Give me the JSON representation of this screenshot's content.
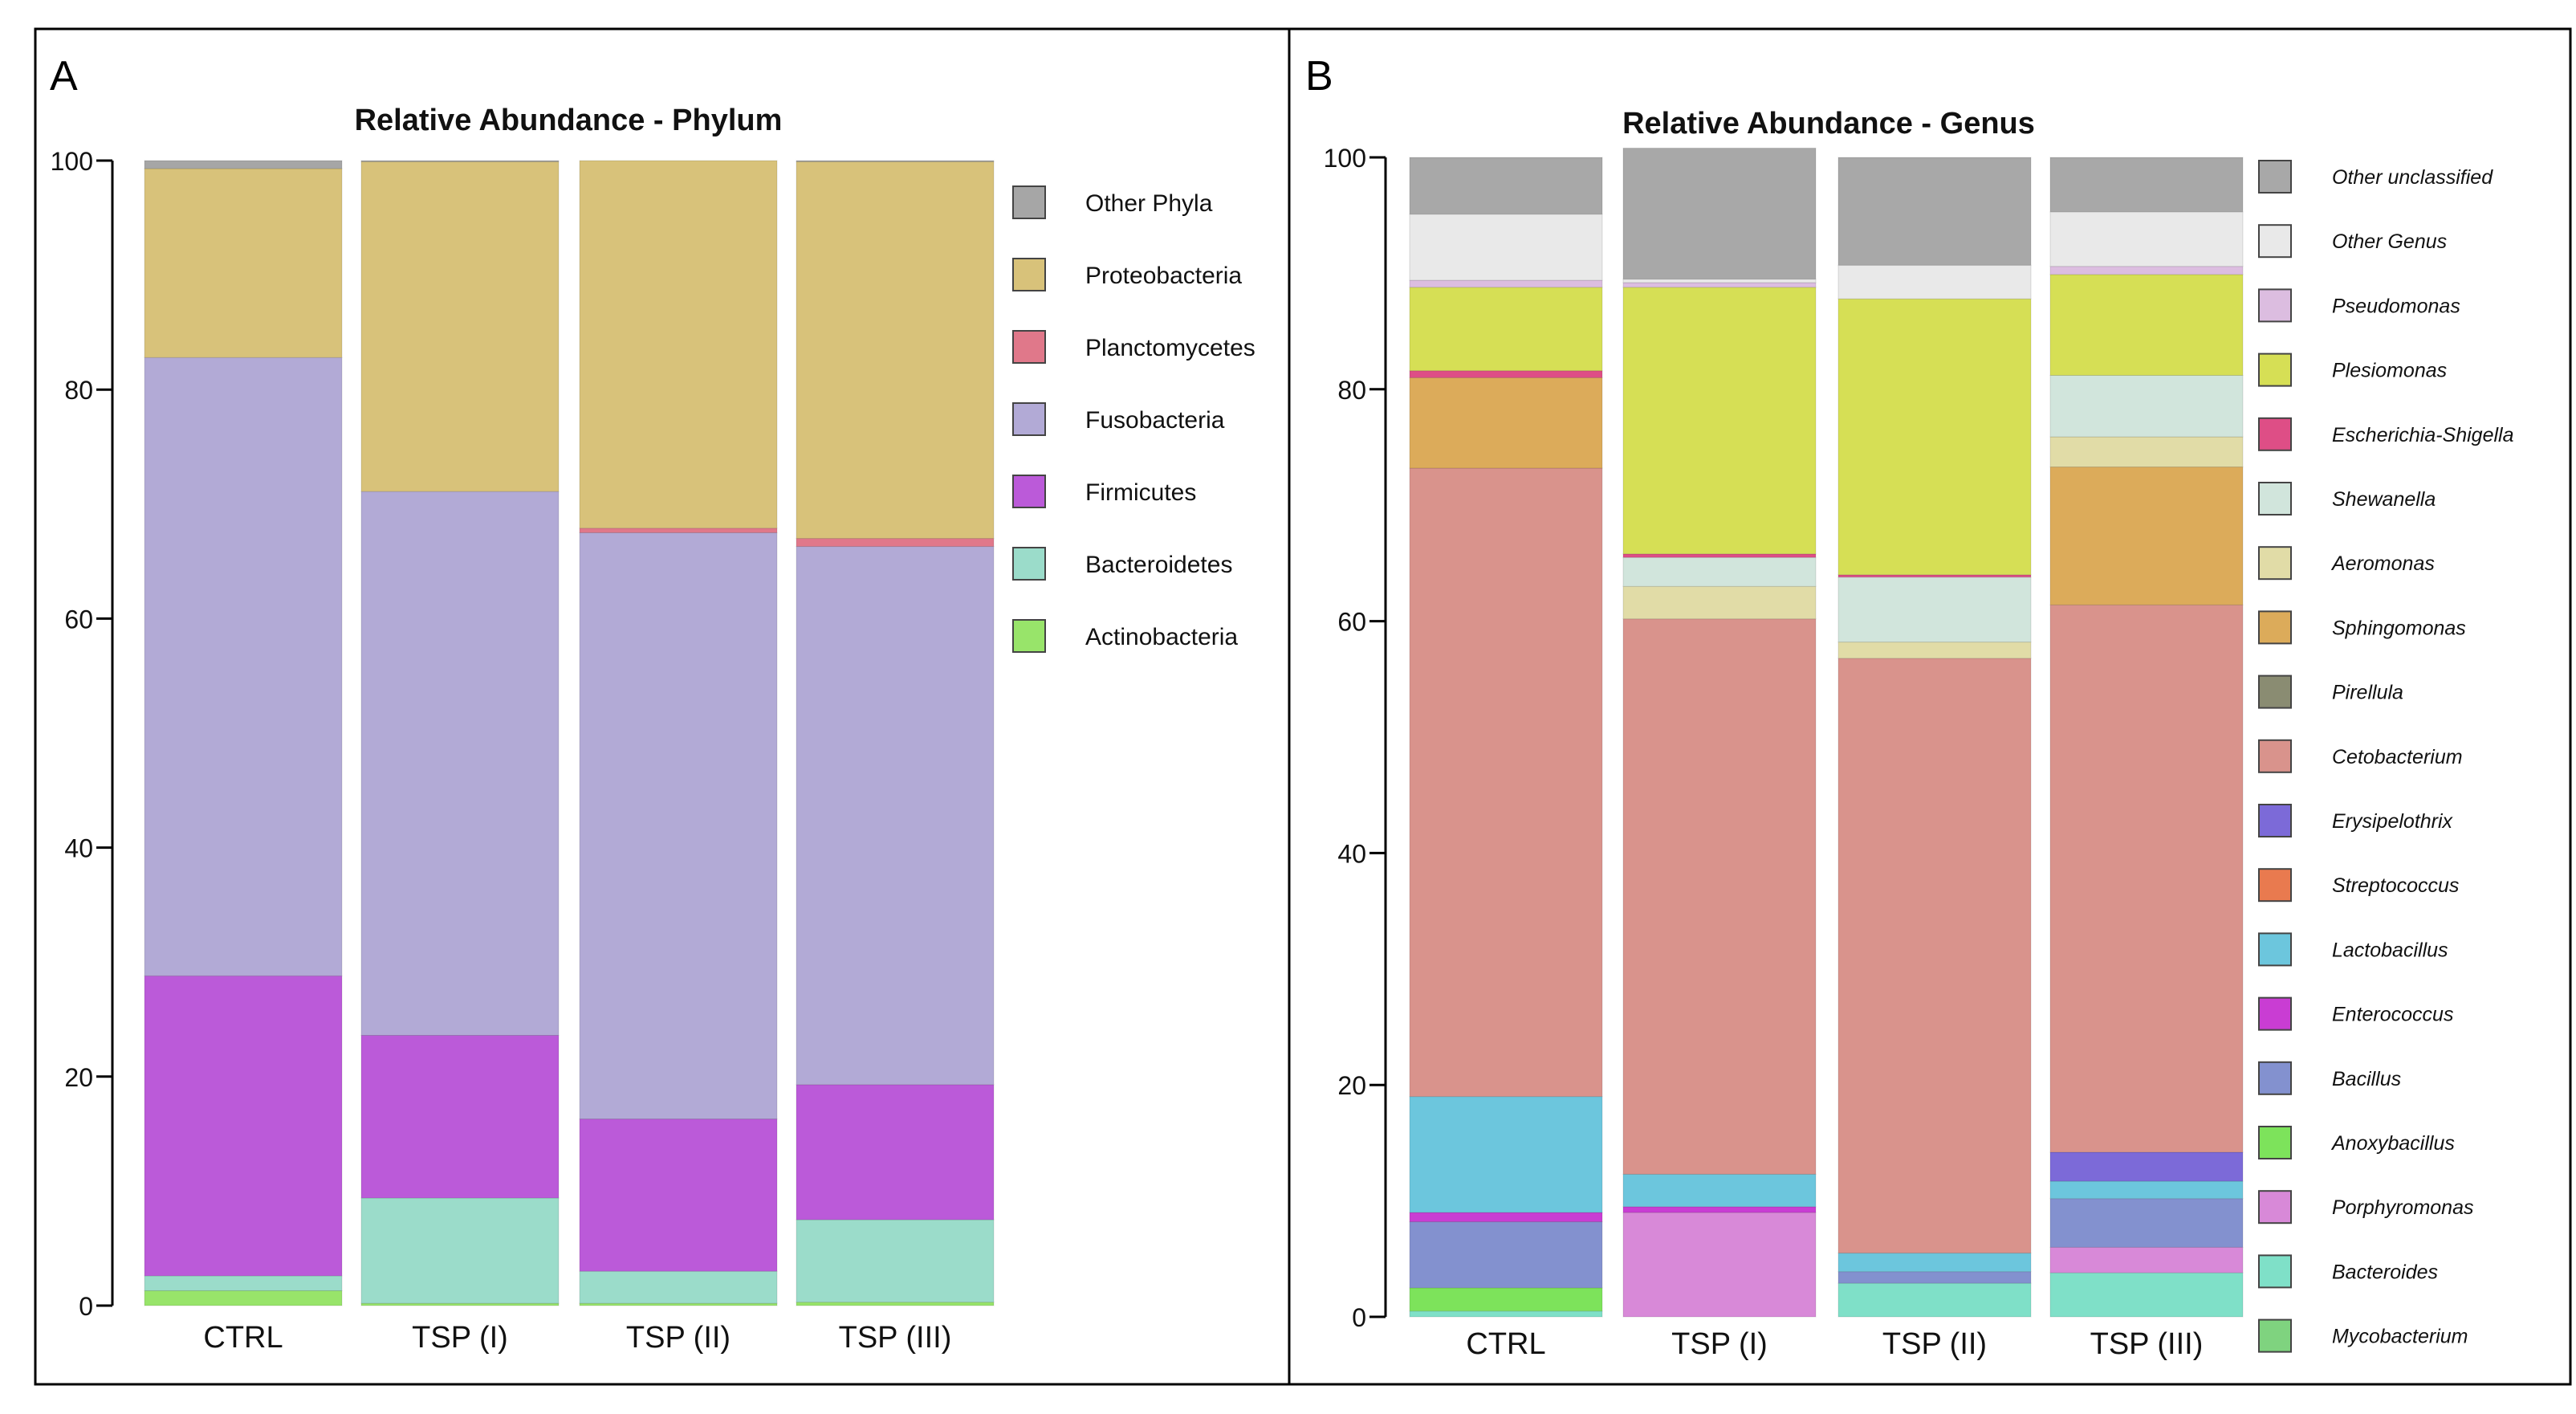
{
  "panels": [
    {
      "label": "A"
    },
    {
      "label": "B"
    }
  ],
  "chart_data": [
    {
      "type": "bar",
      "stacked": true,
      "title": "Relative Abundance - Phylum",
      "categories": [
        "CTRL",
        "TSP (I)",
        "TSP (II)",
        "TSP (III)"
      ],
      "ylim": [
        0,
        100
      ],
      "yticks": [
        0,
        20,
        40,
        60,
        80,
        100
      ],
      "xlabel": "",
      "ylabel": "",
      "legend_position": "right",
      "series": [
        {
          "name": "Actinobacteria",
          "color": "#98e46a",
          "values": [
            1.3,
            0.2,
            0.2,
            0.3
          ]
        },
        {
          "name": "Bacteroidetes",
          "color": "#9bdcca",
          "values": [
            1.3,
            9.2,
            2.8,
            7.2
          ]
        },
        {
          "name": "Firmicutes",
          "color": "#bb5ad9",
          "values": [
            26.2,
            14.2,
            13.3,
            11.8
          ]
        },
        {
          "name": "Fusobacteria",
          "color": "#b2aad6",
          "values": [
            54.0,
            47.5,
            51.2,
            47.0
          ]
        },
        {
          "name": "Planctomycetes",
          "color": "#e0788a",
          "values": [
            0.0,
            0.0,
            0.4,
            0.7
          ]
        },
        {
          "name": "Proteobacteria",
          "color": "#d8c27a",
          "values": [
            16.5,
            28.8,
            32.1,
            32.9
          ]
        },
        {
          "name": "Other Phyla",
          "color": "#a6a6a6",
          "values": [
            0.7,
            0.1,
            0.0,
            0.1
          ]
        }
      ]
    },
    {
      "type": "bar",
      "stacked": true,
      "title": "Relative Abundance - Genus",
      "categories": [
        "CTRL",
        "TSP (I)",
        "TSP (II)",
        "TSP (III)"
      ],
      "ylim": [
        0,
        100
      ],
      "yticks": [
        0,
        20,
        40,
        60,
        80,
        100
      ],
      "xlabel": "",
      "ylabel": "",
      "legend_position": "right",
      "series": [
        {
          "name": "Mycobacterium",
          "color": "#7fd37f",
          "values": [
            0.0,
            0.0,
            0.0,
            0.0
          ]
        },
        {
          "name": "Bacteroides",
          "color": "#7fe0c8",
          "values": [
            0.5,
            0.0,
            2.9,
            3.8
          ]
        },
        {
          "name": "Porphyromonas",
          "color": "#d889d8",
          "values": [
            0.0,
            9.0,
            0.0,
            2.2
          ]
        },
        {
          "name": "Anoxybacillus",
          "color": "#7de35b",
          "values": [
            2.0,
            0.0,
            0.0,
            0.0
          ]
        },
        {
          "name": "Bacillus",
          "color": "#8391cf",
          "values": [
            5.7,
            0.0,
            1.0,
            4.2
          ]
        },
        {
          "name": "Enterococcus",
          "color": "#c93dd3",
          "values": [
            0.8,
            0.5,
            0.0,
            0.0
          ]
        },
        {
          "name": "Lactobacillus",
          "color": "#6cc6dd",
          "values": [
            10.0,
            2.8,
            1.6,
            1.5
          ]
        },
        {
          "name": "Streptococcus",
          "color": "#e97a4f",
          "values": [
            0.0,
            0.0,
            0.0,
            0.0
          ]
        },
        {
          "name": "Erysipelothrix",
          "color": "#7c6ad8",
          "values": [
            0.0,
            0.0,
            0.0,
            2.5
          ]
        },
        {
          "name": "Cetobacterium",
          "color": "#d9938c",
          "values": [
            54.2,
            47.9,
            51.3,
            47.2
          ]
        },
        {
          "name": "Pirellula",
          "color": "#8a8c72",
          "values": [
            0.0,
            0.0,
            0.0,
            0.0
          ]
        },
        {
          "name": "Sphingomonas",
          "color": "#dcab5a",
          "values": [
            7.8,
            0.0,
            0.0,
            11.9
          ]
        },
        {
          "name": "Aeromonas",
          "color": "#e1dca7",
          "values": [
            0.0,
            2.8,
            1.4,
            2.6
          ]
        },
        {
          "name": "Shewanella",
          "color": "#d1e5dc",
          "values": [
            0.0,
            2.5,
            5.6,
            5.3
          ]
        },
        {
          "name": "Escherichia-Shigella",
          "color": "#de4e86",
          "values": [
            0.6,
            0.3,
            0.2,
            0.0
          ]
        },
        {
          "name": "Plesiomonas",
          "color": "#d6df55",
          "values": [
            7.2,
            23.0,
            23.8,
            8.7
          ]
        },
        {
          "name": "Pseudomonas",
          "color": "#dcbde0",
          "values": [
            0.6,
            0.4,
            0.0,
            0.7
          ]
        },
        {
          "name": "Other Genus",
          "color": "#e9e9e9",
          "values": [
            5.7,
            0.3,
            2.9,
            4.7
          ]
        },
        {
          "name": "Other unclassified",
          "color": "#a8a8a8",
          "values": [
            4.9,
            11.3,
            9.3,
            4.7
          ]
        }
      ]
    }
  ]
}
